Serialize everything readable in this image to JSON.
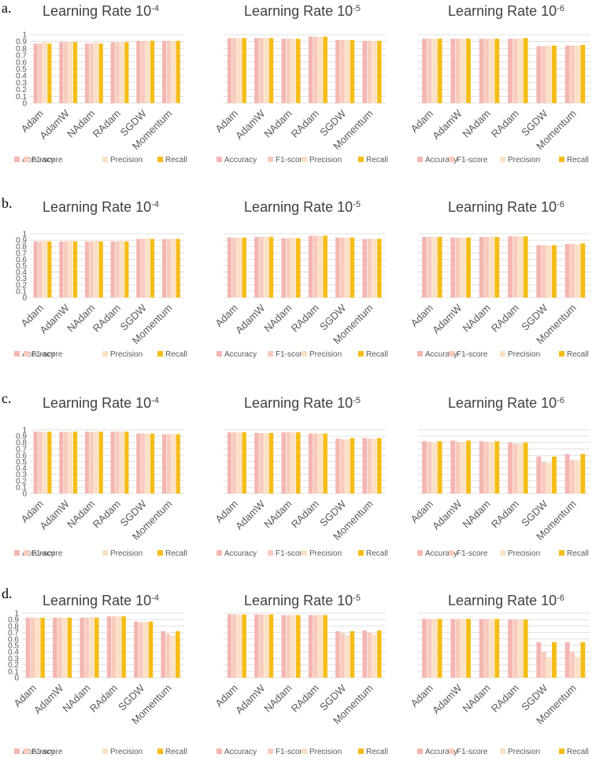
{
  "figure": {
    "colors": {
      "Accuracy": "#f4b6b1",
      "F1-score": "#f9cbbd",
      "Precision": "#fbe0c4",
      "Recall": "#f5bd18",
      "grid": "#d9d9d9",
      "text": "#595959",
      "title": "#404040"
    },
    "legend": [
      "Accuracy",
      "F1-score",
      "Precision",
      "Recall"
    ],
    "y_ticks": [
      "0",
      "0.1",
      "0.2",
      "0.3",
      "0.4",
      "0.5",
      "0.6",
      "0.7",
      "0.8",
      "0.9",
      "1"
    ]
  },
  "chart_data": [
    {
      "panel": "a.",
      "type": "bar",
      "title": "Learning Rate 10",
      "title_sup": "-4",
      "show_yaxis": true,
      "ylim": [
        0,
        1
      ],
      "categories": [
        "Adam",
        "AdamW",
        "NAdam",
        "RAdam",
        "SGDW",
        "Momentum"
      ],
      "series": [
        {
          "name": "Accuracy",
          "values": [
            0.87,
            0.89,
            0.87,
            0.89,
            0.91,
            0.91
          ]
        },
        {
          "name": "F1-score",
          "values": [
            0.87,
            0.89,
            0.87,
            0.89,
            0.91,
            0.91
          ]
        },
        {
          "name": "Precision",
          "values": [
            0.89,
            0.9,
            0.89,
            0.89,
            0.91,
            0.91
          ]
        },
        {
          "name": "Recall",
          "values": [
            0.87,
            0.89,
            0.87,
            0.89,
            0.91,
            0.91
          ]
        }
      ]
    },
    {
      "panel": "",
      "type": "bar",
      "title": "Learning Rate 10",
      "title_sup": "-5",
      "show_yaxis": false,
      "ylim": [
        0,
        1
      ],
      "categories": [
        "Adam",
        "AdamW",
        "NAdam",
        "RAdam",
        "SGDW",
        "Momentum"
      ],
      "series": [
        {
          "name": "Accuracy",
          "values": [
            0.95,
            0.95,
            0.94,
            0.97,
            0.92,
            0.91
          ]
        },
        {
          "name": "F1-score",
          "values": [
            0.95,
            0.95,
            0.94,
            0.97,
            0.92,
            0.91
          ]
        },
        {
          "name": "Precision",
          "values": [
            0.95,
            0.95,
            0.94,
            0.97,
            0.92,
            0.91
          ]
        },
        {
          "name": "Recall",
          "values": [
            0.95,
            0.95,
            0.94,
            0.97,
            0.92,
            0.91
          ]
        }
      ]
    },
    {
      "panel": "",
      "type": "bar",
      "title": "Learning Rate 10",
      "title_sup": "-6",
      "show_yaxis": false,
      "ylim": [
        0,
        1
      ],
      "categories": [
        "Adam",
        "AdamW",
        "NAdam",
        "RAdam",
        "SGDW",
        "Momentum"
      ],
      "series": [
        {
          "name": "Accuracy",
          "values": [
            0.94,
            0.94,
            0.94,
            0.94,
            0.83,
            0.84
          ]
        },
        {
          "name": "F1-score",
          "values": [
            0.94,
            0.94,
            0.94,
            0.94,
            0.83,
            0.84
          ]
        },
        {
          "name": "Precision",
          "values": [
            0.94,
            0.94,
            0.94,
            0.94,
            0.84,
            0.84
          ]
        },
        {
          "name": "Recall",
          "values": [
            0.94,
            0.94,
            0.94,
            0.95,
            0.84,
            0.85
          ]
        }
      ]
    },
    {
      "panel": "b.",
      "type": "bar",
      "title": "Learning Rate 10",
      "title_sup": "-4",
      "show_yaxis": true,
      "ylim": [
        0,
        1
      ],
      "categories": [
        "Adam",
        "AdamW",
        "NAdam",
        "RAdam",
        "SGDW",
        "Momentum"
      ],
      "series": [
        {
          "name": "Accuracy",
          "values": [
            0.88,
            0.88,
            0.88,
            0.88,
            0.92,
            0.92
          ]
        },
        {
          "name": "F1-score",
          "values": [
            0.88,
            0.88,
            0.88,
            0.88,
            0.92,
            0.92
          ]
        },
        {
          "name": "Precision",
          "values": [
            0.89,
            0.89,
            0.89,
            0.89,
            0.93,
            0.92
          ]
        },
        {
          "name": "Recall",
          "values": [
            0.88,
            0.88,
            0.88,
            0.88,
            0.92,
            0.92
          ]
        }
      ]
    },
    {
      "panel": "",
      "type": "bar",
      "title": "Learning Rate 10",
      "title_sup": "-5",
      "show_yaxis": false,
      "ylim": [
        0,
        1
      ],
      "categories": [
        "Adam",
        "AdamW",
        "NAdam",
        "RAdam",
        "SGDW",
        "Momentum"
      ],
      "series": [
        {
          "name": "Accuracy",
          "values": [
            0.94,
            0.95,
            0.93,
            0.97,
            0.94,
            0.92
          ]
        },
        {
          "name": "F1-score",
          "values": [
            0.94,
            0.95,
            0.93,
            0.97,
            0.94,
            0.92
          ]
        },
        {
          "name": "Precision",
          "values": [
            0.94,
            0.95,
            0.94,
            0.97,
            0.94,
            0.92
          ]
        },
        {
          "name": "Recall",
          "values": [
            0.94,
            0.95,
            0.93,
            0.97,
            0.94,
            0.92
          ]
        }
      ]
    },
    {
      "panel": "",
      "type": "bar",
      "title": "Learning Rate 10",
      "title_sup": "-6",
      "show_yaxis": false,
      "ylim": [
        0,
        1
      ],
      "categories": [
        "Adam",
        "AdamW",
        "NAdam",
        "RAdam",
        "SGDW",
        "Momentum"
      ],
      "series": [
        {
          "name": "Accuracy",
          "values": [
            0.95,
            0.94,
            0.95,
            0.96,
            0.82,
            0.84
          ]
        },
        {
          "name": "F1-score",
          "values": [
            0.95,
            0.94,
            0.95,
            0.96,
            0.82,
            0.84
          ]
        },
        {
          "name": "Precision",
          "values": [
            0.95,
            0.94,
            0.95,
            0.96,
            0.82,
            0.84
          ]
        },
        {
          "name": "Recall",
          "values": [
            0.95,
            0.94,
            0.95,
            0.96,
            0.82,
            0.85
          ]
        }
      ]
    },
    {
      "panel": "c.",
      "type": "bar",
      "title": "Learning Rate 10",
      "title_sup": "-4",
      "show_yaxis": true,
      "ylim": [
        0,
        1
      ],
      "categories": [
        "Adam",
        "AdamW",
        "NAdam",
        "RAdam",
        "SGDW",
        "Momentum"
      ],
      "series": [
        {
          "name": "Accuracy",
          "values": [
            0.97,
            0.97,
            0.97,
            0.97,
            0.94,
            0.93
          ]
        },
        {
          "name": "F1-score",
          "values": [
            0.97,
            0.97,
            0.97,
            0.97,
            0.94,
            0.93
          ]
        },
        {
          "name": "Precision",
          "values": [
            0.97,
            0.97,
            0.97,
            0.97,
            0.94,
            0.93
          ]
        },
        {
          "name": "Recall",
          "values": [
            0.97,
            0.97,
            0.97,
            0.97,
            0.94,
            0.93
          ]
        }
      ]
    },
    {
      "panel": "",
      "type": "bar",
      "title": "Learning Rate 10",
      "title_sup": "-5",
      "show_yaxis": false,
      "ylim": [
        0,
        1
      ],
      "categories": [
        "Adam",
        "AdamW",
        "NAdam",
        "RAdam",
        "SGDW",
        "Momentum"
      ],
      "series": [
        {
          "name": "Accuracy",
          "values": [
            0.96,
            0.95,
            0.96,
            0.94,
            0.86,
            0.87
          ]
        },
        {
          "name": "F1-score",
          "values": [
            0.96,
            0.95,
            0.96,
            0.94,
            0.85,
            0.86
          ]
        },
        {
          "name": "Precision",
          "values": [
            0.96,
            0.95,
            0.96,
            0.94,
            0.85,
            0.86
          ]
        },
        {
          "name": "Recall",
          "values": [
            0.96,
            0.95,
            0.96,
            0.94,
            0.87,
            0.87
          ]
        }
      ]
    },
    {
      "panel": "",
      "type": "bar",
      "title": "Learning Rate 10",
      "title_sup": "-6",
      "show_yaxis": false,
      "ylim": [
        0,
        1
      ],
      "categories": [
        "Adam",
        "AdamW",
        "NAdam",
        "RAdam",
        "SGDW",
        "Momentum"
      ],
      "series": [
        {
          "name": "Accuracy",
          "values": [
            0.82,
            0.83,
            0.82,
            0.8,
            0.58,
            0.62
          ]
        },
        {
          "name": "F1-score",
          "values": [
            0.81,
            0.81,
            0.81,
            0.78,
            0.49,
            0.53
          ]
        },
        {
          "name": "Precision",
          "values": [
            0.8,
            0.8,
            0.81,
            0.78,
            0.48,
            0.52
          ]
        },
        {
          "name": "Recall",
          "values": [
            0.82,
            0.83,
            0.82,
            0.8,
            0.58,
            0.62
          ]
        }
      ]
    },
    {
      "panel": "d.",
      "type": "bar",
      "title": "Learning Rate 10",
      "title_sup": "-4",
      "show_yaxis": true,
      "ylim": [
        0,
        1
      ],
      "categories": [
        "Adam",
        "AdamW",
        "NAdam",
        "RAdam",
        "SGDW",
        "Momentum"
      ],
      "series": [
        {
          "name": "Accuracy",
          "values": [
            0.93,
            0.93,
            0.93,
            0.95,
            0.87,
            0.72
          ]
        },
        {
          "name": "F1-score",
          "values": [
            0.93,
            0.93,
            0.93,
            0.95,
            0.86,
            0.68
          ]
        },
        {
          "name": "Precision",
          "values": [
            0.93,
            0.93,
            0.94,
            0.95,
            0.86,
            0.65
          ]
        },
        {
          "name": "Recall",
          "values": [
            0.93,
            0.93,
            0.93,
            0.95,
            0.87,
            0.72
          ]
        }
      ]
    },
    {
      "panel": "",
      "type": "bar",
      "title": "Learning Rate 10",
      "title_sup": "-5",
      "show_yaxis": false,
      "ylim": [
        0,
        1
      ],
      "categories": [
        "Adam",
        "AdamW",
        "NAdam",
        "RAdam",
        "SGDW",
        "Momentum"
      ],
      "series": [
        {
          "name": "Accuracy",
          "values": [
            0.98,
            0.98,
            0.97,
            0.97,
            0.72,
            0.73
          ]
        },
        {
          "name": "F1-score",
          "values": [
            0.98,
            0.98,
            0.97,
            0.97,
            0.69,
            0.7
          ]
        },
        {
          "name": "Precision",
          "values": [
            0.98,
            0.98,
            0.97,
            0.97,
            0.66,
            0.67
          ]
        },
        {
          "name": "Recall",
          "values": [
            0.98,
            0.98,
            0.97,
            0.97,
            0.72,
            0.73
          ]
        }
      ]
    },
    {
      "panel": "",
      "type": "bar",
      "title": "Learning Rate 10",
      "title_sup": "-6",
      "show_yaxis": false,
      "ylim": [
        0,
        1
      ],
      "categories": [
        "Adam",
        "AdamW",
        "NAdam",
        "RAdam",
        "SGDW",
        "Momentum"
      ],
      "series": [
        {
          "name": "Accuracy",
          "values": [
            0.91,
            0.91,
            0.91,
            0.9,
            0.55,
            0.55
          ]
        },
        {
          "name": "F1-score",
          "values": [
            0.91,
            0.91,
            0.91,
            0.9,
            0.4,
            0.4
          ]
        },
        {
          "name": "Precision",
          "values": [
            0.91,
            0.91,
            0.91,
            0.9,
            0.32,
            0.32
          ]
        },
        {
          "name": "Recall",
          "values": [
            0.91,
            0.91,
            0.91,
            0.9,
            0.55,
            0.55
          ]
        }
      ]
    }
  ]
}
